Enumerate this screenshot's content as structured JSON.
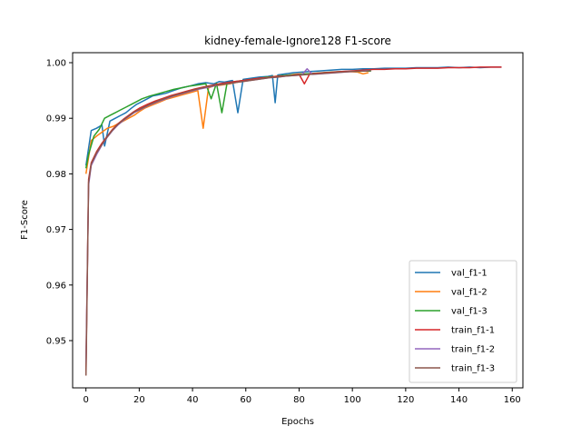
{
  "chart_data": {
    "type": "line",
    "title": "kidney-female-Ignore128 F1-score",
    "xlabel": "Epochs",
    "ylabel": "F1-Score",
    "xlim": [
      -5,
      164
    ],
    "ylim": [
      0.9415,
      1.0018
    ],
    "xticks": [
      0,
      20,
      40,
      60,
      80,
      100,
      120,
      140,
      160
    ],
    "yticks": [
      0.95,
      0.96,
      0.97,
      0.98,
      0.99,
      1.0
    ],
    "ytick_labels": [
      "0.95",
      "0.96",
      "0.97",
      "0.98",
      "0.99",
      "1.00"
    ],
    "grid": false,
    "legend_position": "lower-right",
    "series": [
      {
        "name": "val_f1-1",
        "color": "#1f77b4",
        "points": [
          [
            0,
            0.9815
          ],
          [
            2,
            0.9878
          ],
          [
            4,
            0.9882
          ],
          [
            6,
            0.9888
          ],
          [
            7,
            0.985
          ],
          [
            9,
            0.9895
          ],
          [
            11,
            0.99
          ],
          [
            13,
            0.9905
          ],
          [
            15,
            0.991
          ],
          [
            17,
            0.9918
          ],
          [
            19,
            0.9925
          ],
          [
            21,
            0.993
          ],
          [
            23,
            0.9935
          ],
          [
            25,
            0.994
          ],
          [
            27,
            0.9942
          ],
          [
            30,
            0.9945
          ],
          [
            33,
            0.995
          ],
          [
            36,
            0.9955
          ],
          [
            39,
            0.9958
          ],
          [
            42,
            0.9962
          ],
          [
            45,
            0.9964
          ],
          [
            48,
            0.9962
          ],
          [
            50,
            0.9966
          ],
          [
            52,
            0.9965
          ],
          [
            55,
            0.9968
          ],
          [
            57,
            0.991
          ],
          [
            59,
            0.997
          ],
          [
            62,
            0.9972
          ],
          [
            65,
            0.9974
          ],
          [
            68,
            0.9975
          ],
          [
            70,
            0.9977
          ],
          [
            71,
            0.9928
          ],
          [
            72,
            0.9978
          ],
          [
            75,
            0.998
          ],
          [
            78,
            0.9982
          ],
          [
            81,
            0.9983
          ],
          [
            84,
            0.9984
          ],
          [
            87,
            0.9985
          ],
          [
            90,
            0.9986
          ],
          [
            93,
            0.9987
          ],
          [
            96,
            0.9988
          ],
          [
            100,
            0.9988
          ],
          [
            104,
            0.9989
          ],
          [
            108,
            0.9989
          ],
          [
            112,
            0.999
          ],
          [
            116,
            0.999
          ],
          [
            120,
            0.999
          ],
          [
            124,
            0.9991
          ],
          [
            128,
            0.9991
          ],
          [
            132,
            0.9991
          ],
          [
            136,
            0.9992
          ],
          [
            140,
            0.9991
          ],
          [
            144,
            0.9992
          ],
          [
            148,
            0.9991
          ],
          [
            152,
            0.9992
          ],
          [
            156,
            0.9992
          ]
        ]
      },
      {
        "name": "val_f1-2",
        "color": "#ff7f0e",
        "points": [
          [
            0,
            0.98
          ],
          [
            2,
            0.986
          ],
          [
            4,
            0.9868
          ],
          [
            6,
            0.9875
          ],
          [
            8,
            0.9882
          ],
          [
            10,
            0.9885
          ],
          [
            12,
            0.989
          ],
          [
            14,
            0.9895
          ],
          [
            16,
            0.99
          ],
          [
            18,
            0.9905
          ],
          [
            20,
            0.9912
          ],
          [
            22,
            0.9918
          ],
          [
            24,
            0.9922
          ],
          [
            26,
            0.9926
          ],
          [
            28,
            0.993
          ],
          [
            30,
            0.9934
          ],
          [
            33,
            0.9938
          ],
          [
            36,
            0.9942
          ],
          [
            39,
            0.9946
          ],
          [
            42,
            0.995
          ],
          [
            44,
            0.9882
          ],
          [
            46,
            0.9955
          ],
          [
            48,
            0.9958
          ],
          [
            51,
            0.996
          ],
          [
            54,
            0.9962
          ],
          [
            57,
            0.9965
          ],
          [
            60,
            0.9967
          ],
          [
            63,
            0.997
          ],
          [
            66,
            0.9972
          ],
          [
            69,
            0.9974
          ],
          [
            72,
            0.9976
          ],
          [
            75,
            0.9977
          ],
          [
            78,
            0.9979
          ],
          [
            81,
            0.998
          ],
          [
            84,
            0.998
          ],
          [
            87,
            0.9981
          ],
          [
            90,
            0.9982
          ],
          [
            94,
            0.9983
          ],
          [
            98,
            0.9984
          ],
          [
            102,
            0.9983
          ],
          [
            104,
            0.998
          ],
          [
            106,
            0.9982
          ]
        ]
      },
      {
        "name": "val_f1-3",
        "color": "#2ca02c",
        "points": [
          [
            0,
            0.981
          ],
          [
            1,
            0.9835
          ],
          [
            3,
            0.9868
          ],
          [
            5,
            0.988
          ],
          [
            7,
            0.99
          ],
          [
            9,
            0.9905
          ],
          [
            11,
            0.991
          ],
          [
            13,
            0.9915
          ],
          [
            15,
            0.992
          ],
          [
            17,
            0.9925
          ],
          [
            19,
            0.993
          ],
          [
            21,
            0.9935
          ],
          [
            24,
            0.994
          ],
          [
            27,
            0.9944
          ],
          [
            30,
            0.9948
          ],
          [
            33,
            0.9952
          ],
          [
            36,
            0.9955
          ],
          [
            39,
            0.9958
          ],
          [
            42,
            0.996
          ],
          [
            45,
            0.9962
          ],
          [
            47,
            0.9935
          ],
          [
            49,
            0.9963
          ],
          [
            51,
            0.991
          ],
          [
            53,
            0.9964
          ],
          [
            56,
            0.9966
          ],
          [
            59,
            0.9968
          ],
          [
            62,
            0.997
          ],
          [
            65,
            0.9972
          ],
          [
            68,
            0.9974
          ],
          [
            71,
            0.9975
          ],
          [
            74,
            0.9977
          ],
          [
            77,
            0.9978
          ],
          [
            80,
            0.9979
          ],
          [
            83,
            0.998
          ],
          [
            86,
            0.9981
          ],
          [
            89,
            0.9982
          ],
          [
            92,
            0.9983
          ],
          [
            96,
            0.9984
          ],
          [
            100,
            0.9984
          ],
          [
            104,
            0.9985
          ],
          [
            107,
            0.9985
          ]
        ]
      },
      {
        "name": "train_f1-1",
        "color": "#d62728",
        "points": [
          [
            0,
            0.9445
          ],
          [
            1,
            0.979
          ],
          [
            2,
            0.982
          ],
          [
            4,
            0.984
          ],
          [
            6,
            0.9855
          ],
          [
            8,
            0.9868
          ],
          [
            10,
            0.988
          ],
          [
            12,
            0.989
          ],
          [
            14,
            0.9898
          ],
          [
            16,
            0.9905
          ],
          [
            18,
            0.9912
          ],
          [
            20,
            0.9918
          ],
          [
            23,
            0.9925
          ],
          [
            26,
            0.9931
          ],
          [
            29,
            0.9936
          ],
          [
            32,
            0.9941
          ],
          [
            35,
            0.9945
          ],
          [
            38,
            0.9949
          ],
          [
            41,
            0.9953
          ],
          [
            44,
            0.9956
          ],
          [
            47,
            0.9959
          ],
          [
            50,
            0.9962
          ],
          [
            53,
            0.9964
          ],
          [
            56,
            0.9966
          ],
          [
            59,
            0.9968
          ],
          [
            62,
            0.997
          ],
          [
            65,
            0.9972
          ],
          [
            68,
            0.9973
          ],
          [
            71,
            0.9975
          ],
          [
            74,
            0.9976
          ],
          [
            77,
            0.9977
          ],
          [
            80,
            0.9979
          ],
          [
            82,
            0.9962
          ],
          [
            84,
            0.998
          ],
          [
            87,
            0.9981
          ],
          [
            90,
            0.9982
          ],
          [
            93,
            0.9983
          ],
          [
            96,
            0.9984
          ],
          [
            99,
            0.9985
          ],
          [
            102,
            0.9986
          ],
          [
            105,
            0.9987
          ],
          [
            108,
            0.9988
          ],
          [
            112,
            0.9988
          ],
          [
            116,
            0.9989
          ],
          [
            120,
            0.9989
          ],
          [
            124,
            0.999
          ],
          [
            128,
            0.999
          ],
          [
            132,
            0.999
          ],
          [
            136,
            0.9991
          ],
          [
            140,
            0.9991
          ],
          [
            144,
            0.9991
          ],
          [
            148,
            0.9992
          ],
          [
            152,
            0.9992
          ],
          [
            156,
            0.9992
          ]
        ]
      },
      {
        "name": "train_f1-2",
        "color": "#9467bd",
        "points": [
          [
            0,
            0.946
          ],
          [
            1,
            0.978
          ],
          [
            2,
            0.9815
          ],
          [
            4,
            0.9835
          ],
          [
            6,
            0.9852
          ],
          [
            8,
            0.9866
          ],
          [
            10,
            0.9878
          ],
          [
            12,
            0.9888
          ],
          [
            14,
            0.9896
          ],
          [
            16,
            0.9903
          ],
          [
            18,
            0.991
          ],
          [
            21,
            0.9917
          ],
          [
            24,
            0.9924
          ],
          [
            27,
            0.993
          ],
          [
            30,
            0.9935
          ],
          [
            33,
            0.994
          ],
          [
            36,
            0.9944
          ],
          [
            39,
            0.9948
          ],
          [
            42,
            0.9952
          ],
          [
            45,
            0.9955
          ],
          [
            48,
            0.9958
          ],
          [
            51,
            0.9961
          ],
          [
            54,
            0.9963
          ],
          [
            57,
            0.9965
          ],
          [
            60,
            0.9967
          ],
          [
            63,
            0.9969
          ],
          [
            66,
            0.9971
          ],
          [
            69,
            0.9973
          ],
          [
            72,
            0.9974
          ],
          [
            75,
            0.9976
          ],
          [
            78,
            0.9977
          ],
          [
            81,
            0.9978
          ],
          [
            83,
            0.9989
          ],
          [
            85,
            0.9979
          ],
          [
            88,
            0.998
          ],
          [
            91,
            0.9981
          ],
          [
            94,
            0.9982
          ],
          [
            97,
            0.9983
          ],
          [
            100,
            0.9984
          ],
          [
            103,
            0.9985
          ],
          [
            106,
            0.9986
          ],
          [
            107,
            0.9986
          ]
        ]
      },
      {
        "name": "train_f1-3",
        "color": "#8c564b",
        "points": [
          [
            0,
            0.9437
          ],
          [
            1,
            0.9785
          ],
          [
            2,
            0.9818
          ],
          [
            4,
            0.9838
          ],
          [
            6,
            0.9853
          ],
          [
            8,
            0.9867
          ],
          [
            10,
            0.9879
          ],
          [
            12,
            0.9889
          ],
          [
            14,
            0.9897
          ],
          [
            16,
            0.9904
          ],
          [
            18,
            0.9911
          ],
          [
            21,
            0.9918
          ],
          [
            24,
            0.9925
          ],
          [
            27,
            0.9931
          ],
          [
            30,
            0.9936
          ],
          [
            33,
            0.9941
          ],
          [
            36,
            0.9945
          ],
          [
            39,
            0.9949
          ],
          [
            42,
            0.9953
          ],
          [
            45,
            0.9956
          ],
          [
            48,
            0.9959
          ],
          [
            51,
            0.9961
          ],
          [
            54,
            0.9963
          ],
          [
            57,
            0.9965
          ],
          [
            60,
            0.9967
          ],
          [
            63,
            0.9969
          ],
          [
            66,
            0.9971
          ],
          [
            69,
            0.9973
          ],
          [
            72,
            0.9974
          ],
          [
            75,
            0.9976
          ],
          [
            78,
            0.9977
          ],
          [
            81,
            0.9978
          ],
          [
            84,
            0.9979
          ],
          [
            87,
            0.998
          ],
          [
            90,
            0.9981
          ],
          [
            93,
            0.9982
          ],
          [
            96,
            0.9983
          ],
          [
            99,
            0.9984
          ],
          [
            102,
            0.9985
          ],
          [
            105,
            0.9985
          ],
          [
            107,
            0.9986
          ]
        ]
      }
    ]
  }
}
